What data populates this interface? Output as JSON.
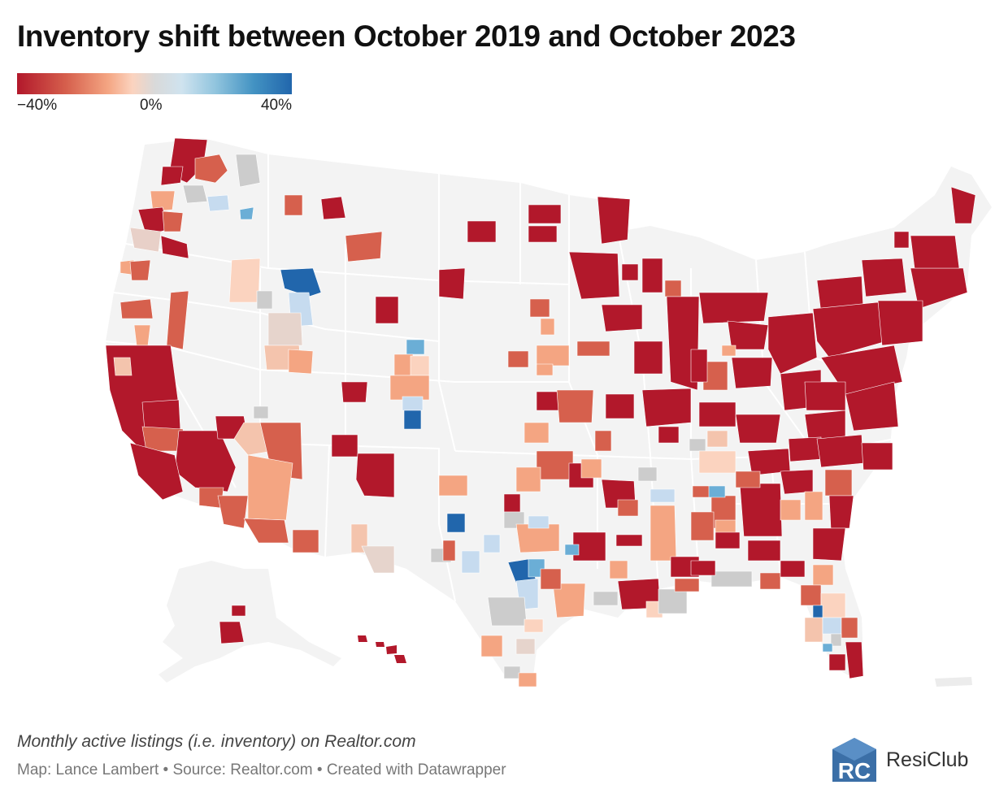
{
  "title": "Inventory shift between October 2019 and October 2023",
  "legend": {
    "min_label": "−40%",
    "mid_label": "0%",
    "max_label": "40%",
    "colors": [
      "#b2182b",
      "#d6604d",
      "#f4a582",
      "#fbd3bf",
      "#d9d9d9",
      "#cfe3ef",
      "#92c5de",
      "#4393c3",
      "#2166ac"
    ]
  },
  "map": {
    "base_fill": "#f3f3f3",
    "palette": {
      "strong_decline": "#b2182b",
      "decline": "#d6604d",
      "moderate_decline": "#f4a582",
      "slight_decline": "#fbd3bf",
      "flat": "#cccccc",
      "slight_increase": "#c6dbef",
      "increase": "#6baed6",
      "strong_increase": "#2166ac"
    }
  },
  "footer": {
    "description": "Monthly active listings (i.e. inventory) on Realtor.com",
    "credit": "Map: Lance Lambert • Source: Realtor.com • Created with Datawrapper"
  },
  "brand": {
    "name": "ResiClub",
    "logo_text": "RC"
  }
}
